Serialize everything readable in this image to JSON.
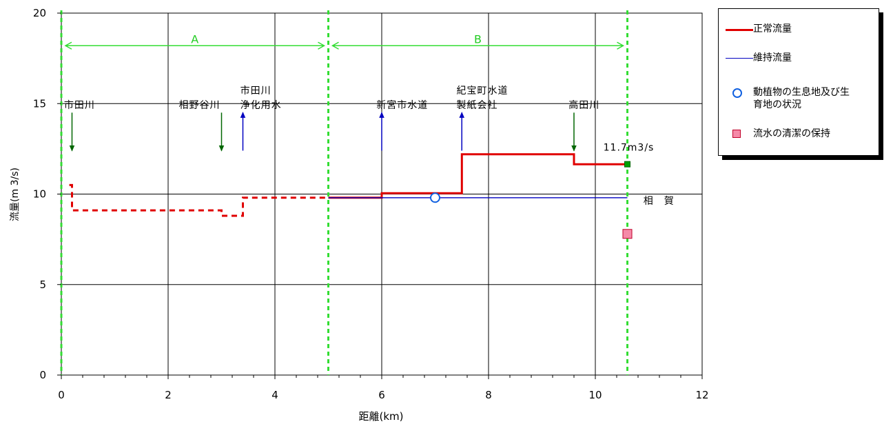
{
  "chart_data": {
    "type": "line",
    "xlabel": "距離(km)",
    "ylabel": "流量(m 3/s)",
    "xlim": [
      0,
      12
    ],
    "ylim": [
      0,
      20
    ],
    "x_ticks": [
      "0",
      "2",
      "4",
      "6",
      "8",
      "10",
      "12"
    ],
    "y_ticks": [
      "0",
      "5",
      "10",
      "15",
      "20"
    ],
    "grid": true,
    "legend_position": "right",
    "series": [
      {
        "name": "正常流量",
        "color": "#e00000",
        "segments": [
          {
            "style": "dashed",
            "points": [
              [
                0.15,
                10.5
              ],
              [
                0.2,
                10.5
              ],
              [
                0.2,
                9.1
              ],
              [
                3.0,
                9.1
              ],
              [
                3.0,
                8.8
              ],
              [
                3.4,
                8.8
              ],
              [
                3.4,
                9.8
              ],
              [
                5.0,
                9.8
              ]
            ]
          },
          {
            "style": "solid",
            "points": [
              [
                5.0,
                9.8
              ],
              [
                6.0,
                9.8
              ],
              [
                6.0,
                10.05
              ],
              [
                7.5,
                10.05
              ],
              [
                7.5,
                12.2
              ],
              [
                9.6,
                12.2
              ],
              [
                9.6,
                11.65
              ],
              [
                10.6,
                11.65
              ]
            ]
          }
        ]
      },
      {
        "name": "維持流量",
        "color": "#0000c0",
        "segments": [
          {
            "style": "solid",
            "points": [
              [
                5.0,
                9.8
              ],
              [
                10.6,
                9.8
              ]
            ]
          }
        ]
      }
    ],
    "markers": [
      {
        "name": "動植物の生息地及び生育地の状況",
        "shape": "circle",
        "x": 7.0,
        "y": 9.8,
        "color": "#1060e0"
      },
      {
        "name": "流水の清潔の保持",
        "shape": "square",
        "x": 10.6,
        "y": 7.8,
        "color": "#f58aa8"
      },
      {
        "name": "",
        "shape": "small-square",
        "x": 10.6,
        "y": 11.65,
        "color": "#00a000"
      }
    ],
    "sections": [
      {
        "label": "A",
        "from": 0,
        "to": 5.0,
        "y": 18.2
      },
      {
        "label": "B",
        "from": 5.0,
        "to": 10.6,
        "y": 18.2
      }
    ],
    "boundaries": [
      0,
      5.0,
      10.6
    ],
    "arrows": [
      {
        "x": 0.2,
        "direction": "down",
        "color": "#006600",
        "from": 14.5,
        "to": 12.4
      },
      {
        "x": 3.0,
        "direction": "down",
        "color": "#006600",
        "from": 14.5,
        "to": 12.4
      },
      {
        "x": 3.4,
        "direction": "up",
        "color": "#0000c0",
        "from": 12.4,
        "to": 14.5
      },
      {
        "x": 6.0,
        "direction": "up",
        "color": "#0000c0",
        "from": 12.4,
        "to": 14.5
      },
      {
        "x": 7.5,
        "direction": "up",
        "color": "#0000c0",
        "from": 12.4,
        "to": 14.5
      },
      {
        "x": 9.6,
        "direction": "down",
        "color": "#006600",
        "from": 14.5,
        "to": 12.4
      }
    ],
    "annotations": [
      {
        "text": "市田川",
        "x": 0.05,
        "y": 14.75
      },
      {
        "text": "相野谷川",
        "x": 2.2,
        "y": 14.75
      },
      {
        "text": "市田川",
        "x": 3.35,
        "y": 15.55
      },
      {
        "text": "浄化用水",
        "x": 3.35,
        "y": 14.75
      },
      {
        "text": "新宮市水道",
        "x": 5.9,
        "y": 14.75
      },
      {
        "text": "紀宝町水道",
        "x": 7.4,
        "y": 15.55
      },
      {
        "text": "製紙会社",
        "x": 7.4,
        "y": 14.75
      },
      {
        "text": "高田川",
        "x": 9.5,
        "y": 14.75
      },
      {
        "text": "11.7m3/s",
        "x": 10.15,
        "y": 12.4
      },
      {
        "text": "相　賀",
        "x": 10.9,
        "y": 9.45
      }
    ]
  },
  "legend": {
    "items": [
      {
        "label": "正常流量"
      },
      {
        "label": "維持流量"
      },
      {
        "label": "動植物の生息地及び生\n育地の状況"
      },
      {
        "label": "流水の清潔の保持"
      }
    ]
  }
}
